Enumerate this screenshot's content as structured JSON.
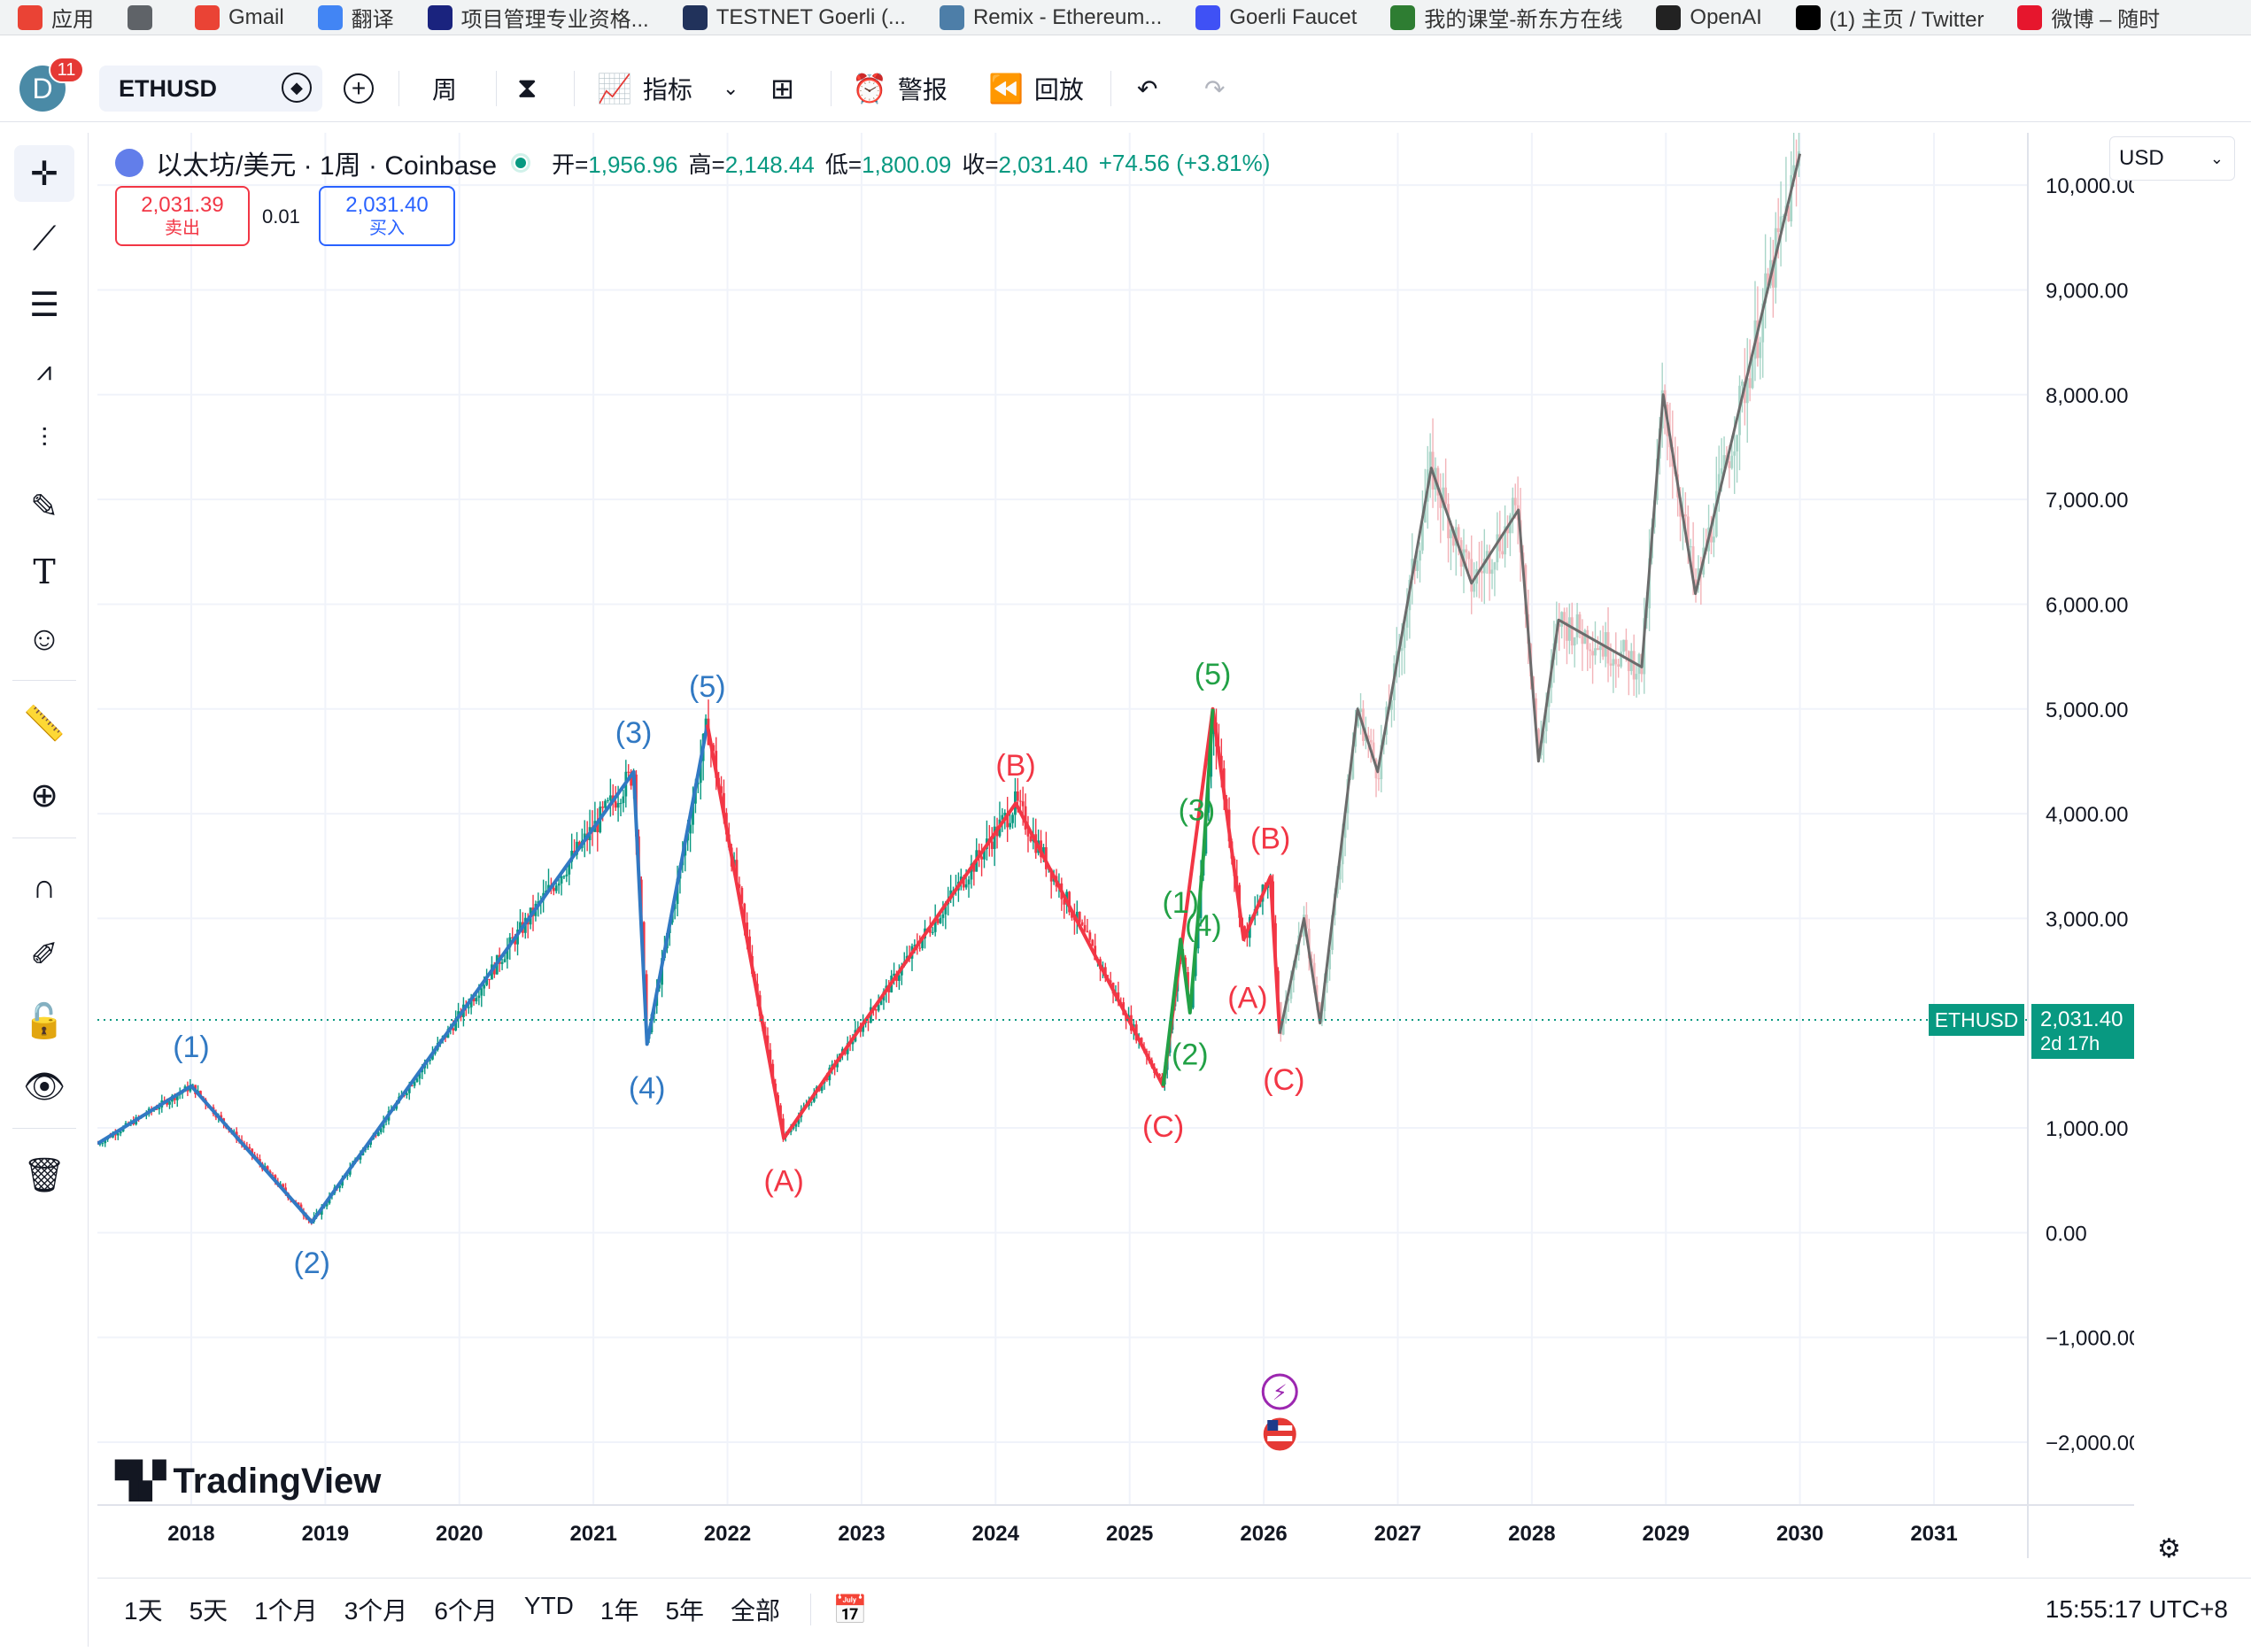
{
  "bookmarks": [
    {
      "label": "应用",
      "icon": "apps-grid-icon",
      "color": "#ea4335"
    },
    {
      "label": "",
      "icon": "grid-icon",
      "color": "#5f6368"
    },
    {
      "label": "Gmail",
      "icon": "gmail-icon",
      "color": "#ea4335"
    },
    {
      "label": "翻译",
      "icon": "translate-icon",
      "color": "#4285f4"
    },
    {
      "label": "项目管理专业资格...",
      "icon": "project-icon",
      "color": "#1a237e"
    },
    {
      "label": "TESTNET Goerli (...",
      "icon": "etherscan-icon",
      "color": "#21325b"
    },
    {
      "label": "Remix - Ethereum...",
      "icon": "remix-icon",
      "color": "#4d7ea8"
    },
    {
      "label": "Goerli Faucet",
      "icon": "alchemy-icon",
      "color": "#3f51f5"
    },
    {
      "label": "我的课堂-新东方在线",
      "icon": "koolearn-icon",
      "color": "#2e7d32"
    },
    {
      "label": "OpenAI",
      "icon": "openai-icon",
      "color": "#222222"
    },
    {
      "label": "(1) 主页 / Twitter",
      "icon": "x-icon",
      "color": "#000000"
    },
    {
      "label": "微博 – 随时",
      "icon": "weibo-icon",
      "color": "#e6162d"
    }
  ],
  "toolbar": {
    "avatar_letter": "D",
    "notification_count": "11",
    "symbol": "ETHUSD",
    "interval": "周",
    "indicators_label": "指标",
    "alerts_label": "警报",
    "replay_label": "回放"
  },
  "legend": {
    "title": "以太坊/美元 · 1周 · Coinbase",
    "open_label": "开=",
    "open": "1,956.96",
    "high_label": "高=",
    "high": "2,148.44",
    "low_label": "低=",
    "low": "1,800.09",
    "close_label": "收=",
    "close": "2,031.40",
    "change": "+74.56 (+3.81%)"
  },
  "trade": {
    "sell_price": "2,031.39",
    "sell_label": "卖出",
    "spread": "0.01",
    "buy_price": "2,031.40",
    "buy_label": "买入"
  },
  "currency": "USD",
  "price_tag": {
    "symbol": "ETHUSD",
    "price": "2,031.40",
    "countdown": "2d 17h",
    "color": "#089981"
  },
  "branding": "TradingView",
  "ranges": [
    "1天",
    "5天",
    "1个月",
    "3个月",
    "6个月",
    "YTD",
    "1年",
    "5年",
    "全部"
  ],
  "clock": "15:55:17 UTC+8",
  "chart_data": {
    "type": "line",
    "x_axis_ticks": [
      "2018",
      "2019",
      "2020",
      "2021",
      "2022",
      "2023",
      "2024",
      "2025",
      "2026",
      "2027",
      "2028",
      "2029",
      "2030",
      "2031"
    ],
    "y_axis_ticks": [
      "10,000.00",
      "9,000.00",
      "8,000.00",
      "7,000.00",
      "6,000.00",
      "5,000.00",
      "4,000.00",
      "3,000.00",
      "1,000.00",
      "0.00",
      "−1,000.00",
      "−2,000.00"
    ],
    "ylim": [
      -2600,
      10500
    ],
    "last_price": 2031.4,
    "series": [
      {
        "color": "#3179c3",
        "points": [
          [
            2017.3,
            850
          ],
          [
            2018.0,
            1400
          ],
          [
            2018.9,
            100
          ],
          [
            2021.3,
            4400
          ],
          [
            2021.4,
            1800
          ],
          [
            2021.85,
            4850
          ]
        ],
        "labels": [
          {
            "text": "(1)",
            "x": 2018.0,
            "y": 1760
          },
          {
            "text": "(2)",
            "x": 2018.9,
            "y": -300
          },
          {
            "text": "(3)",
            "x": 2021.3,
            "y": 4760
          },
          {
            "text": "(4)",
            "x": 2021.4,
            "y": 1370
          },
          {
            "text": "(5)",
            "x": 2021.85,
            "y": 5200
          }
        ]
      },
      {
        "color": "#f23645",
        "points": [
          [
            2021.85,
            4850
          ],
          [
            2022.42,
            900
          ],
          [
            2024.15,
            4100
          ],
          [
            2025.25,
            1400
          ],
          [
            2025.62,
            5000
          ],
          [
            2025.85,
            2800
          ],
          [
            2026.05,
            3400
          ],
          [
            2026.12,
            1900
          ]
        ],
        "labels": [
          {
            "text": "(A)",
            "x": 2022.42,
            "y": 480
          },
          {
            "text": "(B)",
            "x": 2024.15,
            "y": 4450
          },
          {
            "text": "(C)",
            "x": 2025.25,
            "y": 1000
          },
          {
            "text": "(B)",
            "x": 2026.05,
            "y": 3750
          },
          {
            "text": "(A)",
            "x": 2025.88,
            "y": 2230
          },
          {
            "text": "(C)",
            "x": 2026.15,
            "y": 1450
          }
        ]
      },
      {
        "color": "#22a146",
        "points": [
          [
            2025.25,
            1400
          ],
          [
            2025.38,
            2800
          ],
          [
            2025.45,
            2100
          ],
          [
            2025.55,
            3600
          ],
          [
            2025.62,
            5000
          ]
        ],
        "labels": [
          {
            "text": "(1)",
            "x": 2025.38,
            "y": 3140
          },
          {
            "text": "(2)",
            "x": 2025.45,
            "y": 1690
          },
          {
            "text": "(3)",
            "x": 2025.5,
            "y": 4020
          },
          {
            "text": "(4)",
            "x": 2025.55,
            "y": 2920
          },
          {
            "text": "(5)",
            "x": 2025.62,
            "y": 5320
          }
        ]
      },
      {
        "color": "#6b6b6b",
        "points": [
          [
            2026.12,
            1900
          ],
          [
            2026.3,
            3000
          ],
          [
            2026.42,
            2000
          ],
          [
            2026.7,
            5000
          ],
          [
            2026.85,
            4400
          ],
          [
            2027.25,
            7300
          ],
          [
            2027.55,
            6200
          ],
          [
            2027.9,
            6900
          ],
          [
            2028.05,
            4500
          ],
          [
            2028.2,
            5850
          ],
          [
            2028.82,
            5400
          ],
          [
            2028.98,
            8000
          ],
          [
            2029.22,
            6100
          ],
          [
            2030.0,
            10300
          ]
        ],
        "labels": []
      }
    ]
  }
}
